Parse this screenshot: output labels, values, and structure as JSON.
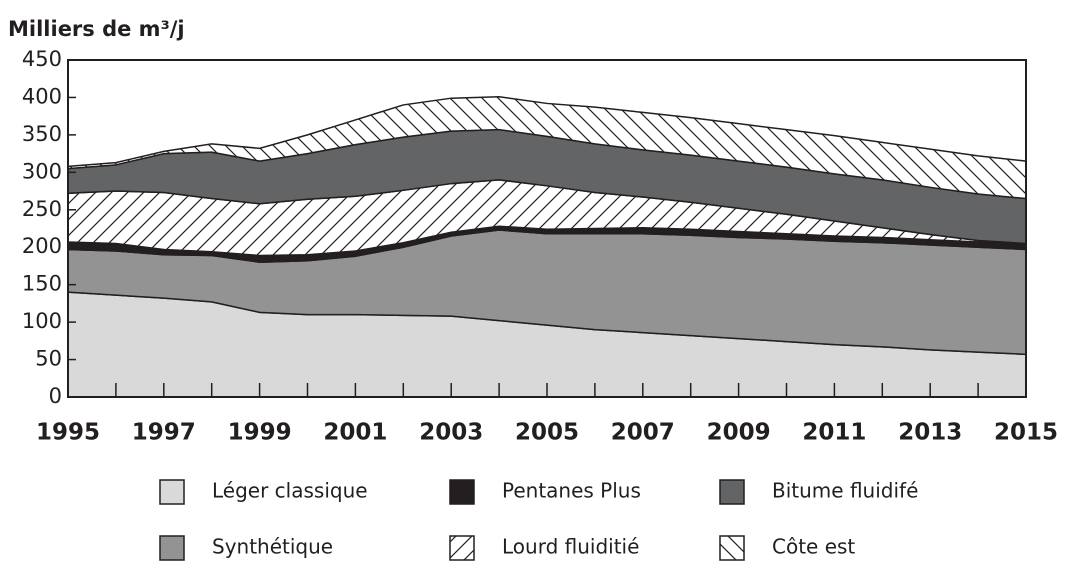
{
  "chart_data": {
    "type": "stacked_area",
    "title": "Milliers de m³/j",
    "x": [
      1995,
      1996,
      1997,
      1998,
      1999,
      2000,
      2001,
      2002,
      2003,
      2004,
      2005,
      2006,
      2007,
      2008,
      2009,
      2010,
      2011,
      2012,
      2013,
      2014,
      2015
    ],
    "xlim": [
      1995,
      2015
    ],
    "xticks": [
      1995,
      1997,
      1999,
      2001,
      2003,
      2005,
      2007,
      2009,
      2011,
      2013,
      2015
    ],
    "ylim": [
      0,
      450
    ],
    "yticks": [
      0,
      50,
      100,
      150,
      200,
      250,
      300,
      350,
      400,
      450
    ],
    "series": [
      {
        "name": "Léger classique",
        "color": "#d9d9d9",
        "values": [
          140,
          136,
          132,
          127,
          113,
          110,
          110,
          109,
          108,
          102,
          96,
          90,
          86,
          82,
          78,
          74,
          70,
          67,
          63,
          60,
          57
        ]
      },
      {
        "name": "Synthétique",
        "color": "#939393",
        "values": [
          57,
          59,
          58,
          62,
          67,
          72,
          78,
          91,
          107,
          121,
          122,
          128,
          132,
          134,
          135,
          137,
          138,
          139,
          140,
          140,
          140
        ]
      },
      {
        "name": "Pentanes Plus",
        "color": "#231f20",
        "values": [
          10,
          10,
          7,
          5,
          9,
          8,
          7,
          6,
          5,
          5,
          6,
          7,
          8,
          8,
          8,
          7,
          7,
          7,
          7,
          7,
          7
        ]
      },
      {
        "name": "Lourd fluiditié",
        "color": "#ffffff",
        "hatch": "/",
        "values": [
          65,
          70,
          76,
          71,
          69,
          74,
          73,
          70,
          65,
          62,
          58,
          48,
          41,
          36,
          31,
          26,
          20,
          13,
          7,
          2,
          1
        ]
      },
      {
        "name": "Bitume fluidifé",
        "color": "#636466",
        "values": [
          33,
          35,
          52,
          62,
          57,
          61,
          69,
          71,
          70,
          67,
          66,
          65,
          63,
          63,
          63,
          63,
          63,
          64,
          63,
          62,
          60
        ]
      },
      {
        "name": "Côte est",
        "color": "#ffffff",
        "hatch": "\\",
        "values": [
          3,
          3,
          3,
          11,
          17,
          25,
          33,
          43,
          44,
          44,
          44,
          49,
          50,
          50,
          50,
          50,
          51,
          50,
          51,
          51,
          50
        ]
      }
    ]
  }
}
